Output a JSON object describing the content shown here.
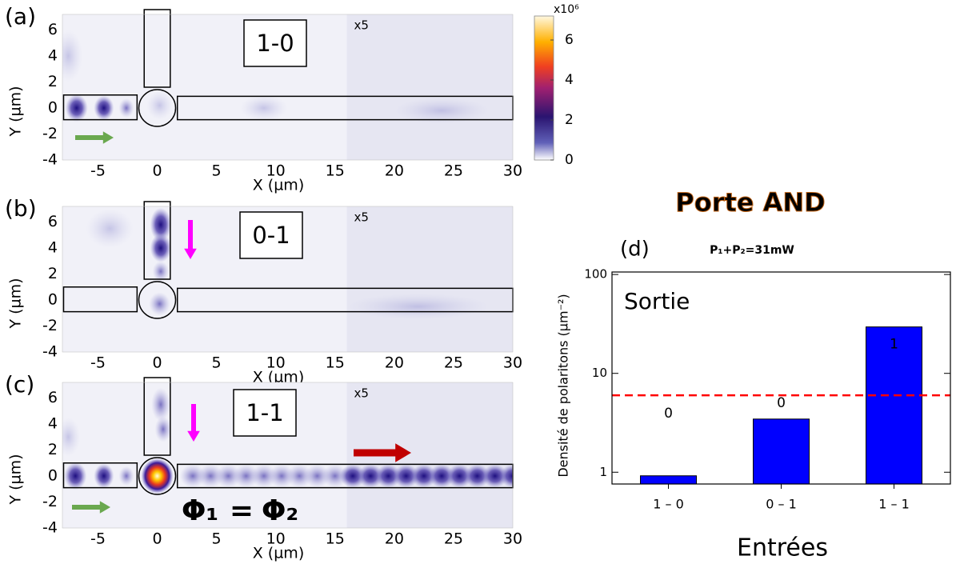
{
  "chart_data": [
    {
      "type": "heatmap",
      "panel_label": "(a)",
      "annotation": "1-0",
      "scale_note": "x5",
      "xlabel": "X (µm)",
      "ylabel": "Y (µm)",
      "xlim": [
        -8,
        30
      ],
      "ylim": [
        -4,
        7.2
      ],
      "xticks": [
        -5,
        0,
        5,
        10,
        15,
        20,
        25,
        30
      ],
      "yticks": [
        -4,
        -2,
        0,
        2,
        4,
        6
      ],
      "colorbar": {
        "label": "x10⁶",
        "ylim": [
          0,
          7.2
        ],
        "yticks": [
          0,
          2,
          4,
          6
        ]
      }
    },
    {
      "type": "heatmap",
      "panel_label": "(b)",
      "annotation": "0-1",
      "scale_note": "x5",
      "xlabel": "X (µm)",
      "ylabel": "Y (µm)",
      "xlim": [
        -8,
        30
      ],
      "ylim": [
        -4,
        7.2
      ],
      "xticks": [
        -5,
        0,
        5,
        10,
        15,
        20,
        25,
        30
      ],
      "yticks": [
        -4,
        -2,
        0,
        2,
        4,
        6
      ]
    },
    {
      "type": "heatmap",
      "panel_label": "(c)",
      "annotation": "1-1",
      "scale_note": "x5",
      "xlabel": "X (µm)",
      "ylabel": "Y (µm)",
      "xlim": [
        -8,
        30
      ],
      "ylim": [
        -4,
        7.2
      ],
      "xticks": [
        -5,
        0,
        5,
        10,
        15,
        20,
        25,
        30
      ],
      "yticks": [
        -4,
        -2,
        0,
        2,
        4,
        6
      ],
      "equation": [
        "Φ₁",
        "=",
        "Φ₂"
      ]
    },
    {
      "type": "bar",
      "title": "Porte AND",
      "panel_label": "(d)",
      "subtitle": "P₁+P₂=31mW",
      "annotation": "Sortie",
      "xlabel": "Entrées",
      "ylabel": "Densité de polaritons (µm⁻²)",
      "categories": [
        "1 – 0",
        "0 – 1",
        "1 – 1"
      ],
      "values": [
        0.92,
        3.45,
        29.5
      ],
      "logic_outputs": [
        "0",
        "0",
        "1"
      ],
      "color": "#0000ff",
      "log_scale": true,
      "ylim": [
        0.76,
        106
      ],
      "yticks": [
        1,
        10,
        100
      ],
      "threshold": 6,
      "threshold_color": "#ff0000"
    }
  ]
}
